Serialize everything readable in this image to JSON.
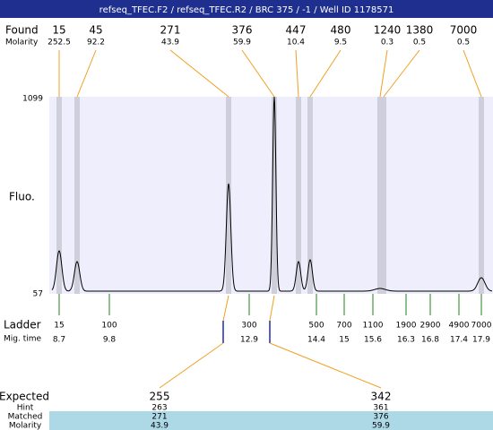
{
  "title": "refseq_TFEC.F2 / refseq_TFEC.R2 / BRC 375 / -1 / Well ID 1178571",
  "found": {
    "label": "Found",
    "sublabel": "Molarity",
    "peaks": [
      {
        "size": 15,
        "molarity": 252.5
      },
      {
        "size": 45,
        "molarity": 92.2
      },
      {
        "size": 271,
        "molarity": 43.9
      },
      {
        "size": 376,
        "molarity": 59.9
      },
      {
        "size": 447,
        "molarity": 10.4
      },
      {
        "size": 480,
        "molarity": 9.5
      },
      {
        "size": 1240,
        "molarity": 0.3
      },
      {
        "size": 1380,
        "molarity": 0.5
      },
      {
        "size": 7000,
        "molarity": 0.5
      }
    ]
  },
  "axis": {
    "label": "Fluo.",
    "top": 1099,
    "bottom": 57
  },
  "ladder": {
    "label": "Ladder",
    "sublabel": "Mig. time",
    "bands": [
      {
        "size": 15,
        "time": 8.7
      },
      {
        "size": 100,
        "time": 9.8
      },
      {
        "size": 300,
        "time": 12.9
      },
      {
        "size": 500,
        "time": 14.4
      },
      {
        "size": 700,
        "time": 15
      },
      {
        "size": 1100,
        "time": 15.6
      },
      {
        "size": 1900,
        "time": 16.3
      },
      {
        "size": 2900,
        "time": 16.8
      },
      {
        "size": 4900,
        "time": 17.4
      },
      {
        "size": 7000,
        "time": 17.9
      }
    ]
  },
  "expected": {
    "labels": [
      "Expected",
      "Hint",
      "Matched",
      "Molarity"
    ],
    "items": [
      {
        "expected": 255,
        "hint": 263,
        "matched": 271,
        "molarity": 43.9
      },
      {
        "expected": 342,
        "hint": 361,
        "matched": 376,
        "molarity": 59.9
      }
    ]
  }
}
